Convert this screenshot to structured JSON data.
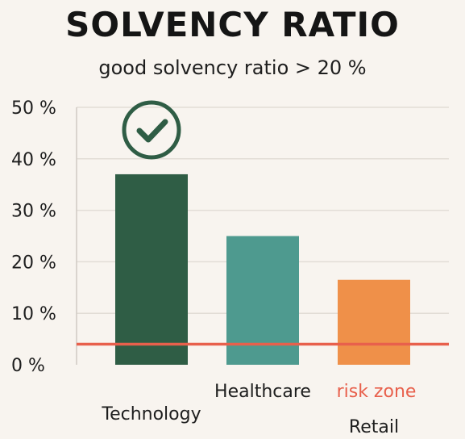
{
  "title": "SOLVENCY RATIO",
  "subtitle": "good solvency ratio > 20 %",
  "colors": {
    "background": "#f8f4ef",
    "grid": "#e2ddd6",
    "risk_line": "#e8604c",
    "check": "#2f5d45"
  },
  "risk_label": "risk zone",
  "check_icon": "check-circle-icon",
  "chart_data": {
    "type": "bar",
    "title": "SOLVENCY RATIO",
    "subtitle": "good solvency ratio > 20 %",
    "categories": [
      "Technology",
      "Healthcare",
      "Retail"
    ],
    "values": [
      37,
      25,
      16.5
    ],
    "bar_colors": [
      "#2f5d45",
      "#4e9a8f",
      "#ef9049"
    ],
    "ylim": [
      0,
      50
    ],
    "yticks": [
      0,
      10,
      20,
      30,
      40,
      50
    ],
    "ytick_labels": [
      "0 %",
      "10 %",
      "20 %",
      "30 %",
      "40 %",
      "50 %"
    ],
    "risk_threshold": 4,
    "grid": true,
    "legend": "none"
  }
}
